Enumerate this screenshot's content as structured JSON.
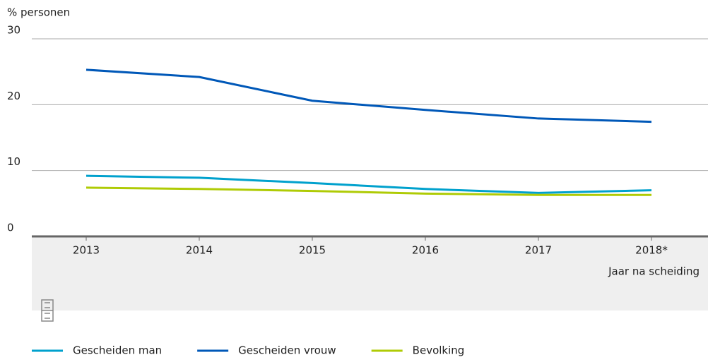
{
  "chart_data": {
    "type": "line",
    "y_label": "% personen",
    "x_label": "Jaar na scheiding",
    "categories": [
      "2013",
      "2014",
      "2015",
      "2016",
      "2017",
      "2018*"
    ],
    "series": [
      {
        "name": "Gescheiden man",
        "color": "#00a1cd",
        "values": [
          9.2,
          8.9,
          8.1,
          7.2,
          6.6,
          7.0
        ]
      },
      {
        "name": "Gescheiden vrouw",
        "color": "#0058b8",
        "values": [
          25.3,
          24.2,
          20.6,
          19.2,
          17.9,
          17.4
        ]
      },
      {
        "name": "Bevolking",
        "color": "#afcb05",
        "values": [
          7.4,
          7.2,
          6.9,
          6.5,
          6.3,
          6.3
        ]
      }
    ],
    "ylim": [
      0,
      30
    ],
    "yticks": [
      0,
      10,
      20,
      30
    ],
    "grid": true,
    "legend": "bottom"
  }
}
